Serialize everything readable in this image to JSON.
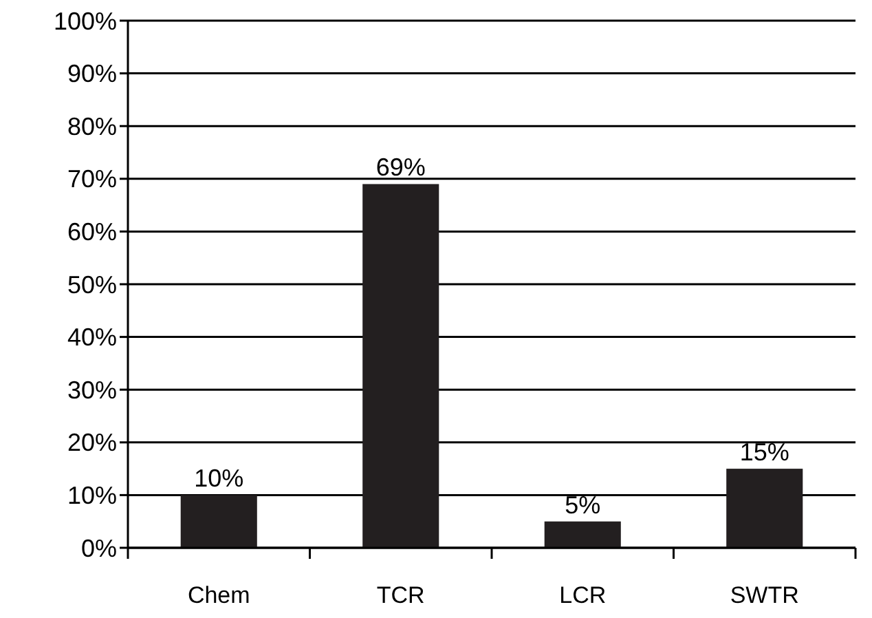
{
  "chart_data": {
    "type": "bar",
    "categories": [
      "Chem",
      "TCR",
      "LCR",
      "SWTR"
    ],
    "values": [
      10,
      69,
      5,
      15
    ],
    "color": "#231f20",
    "value_labels": [
      "10%",
      "69%",
      "5%",
      "15%"
    ],
    "ylim": [
      0,
      100
    ],
    "yticks": [
      {
        "value": 0,
        "label": "0%"
      },
      {
        "value": 10,
        "label": "10%"
      },
      {
        "value": 20,
        "label": "20%"
      },
      {
        "value": 30,
        "label": "30%"
      },
      {
        "value": 40,
        "label": "40%"
      },
      {
        "value": 50,
        "label": "50%"
      },
      {
        "value": 60,
        "label": "60%"
      },
      {
        "value": 70,
        "label": "70%"
      },
      {
        "value": 80,
        "label": "80%"
      },
      {
        "value": 90,
        "label": "90%"
      },
      {
        "value": 100,
        "label": "100%"
      }
    ],
    "grid": "y"
  }
}
